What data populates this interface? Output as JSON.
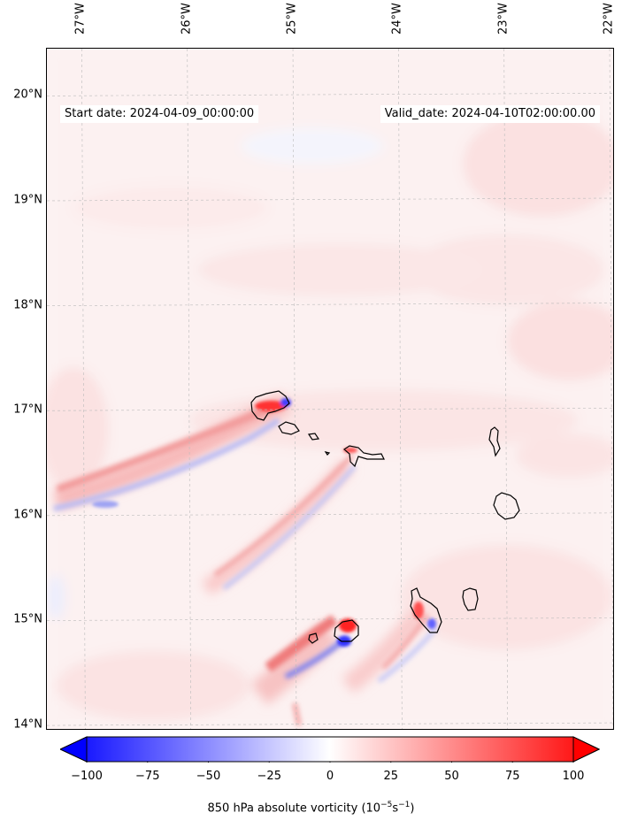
{
  "map": {
    "start_date": "Start date: 2024-04-09_00:00:00",
    "valid_date": "Valid_date: 2024-04-10T02:00:00.00",
    "lon_labels": [
      "27°W",
      "26°W",
      "25°W",
      "24°W",
      "23°W",
      "22°W"
    ],
    "lon_values": [
      -27,
      -26,
      -25,
      -24,
      -23,
      -22
    ],
    "lat_labels": [
      "20°N",
      "19°N",
      "18°N",
      "17°N",
      "16°N",
      "15°N",
      "14°N"
    ],
    "lat_values": [
      20,
      19,
      18,
      17,
      16,
      15,
      14
    ],
    "extent": {
      "lon_min": -27.33,
      "lon_max": -21.95,
      "lat_min": 13.95,
      "lat_max": 20.45
    },
    "features": [
      "Santo Antão",
      "São Vicente",
      "Santa Luzia",
      "São Nicolau",
      "Sal",
      "Boa Vista",
      "Maio",
      "Santiago",
      "Fogo",
      "Brava"
    ]
  },
  "colorbar": {
    "tick_labels": [
      "−100",
      "−75",
      "−50",
      "−25",
      "0",
      "25",
      "50",
      "75",
      "100"
    ],
    "tick_values": [
      -100,
      -75,
      -50,
      -25,
      0,
      25,
      50,
      75,
      100
    ],
    "label": "850 hPa absolute vorticity (10",
    "label_exp1": "−5",
    "label_mid": "s",
    "label_exp2": "−1",
    "label_end": ")",
    "colors": {
      "min": "#0000ff",
      "mid": "#ffffff",
      "max": "#ff0000"
    }
  }
}
